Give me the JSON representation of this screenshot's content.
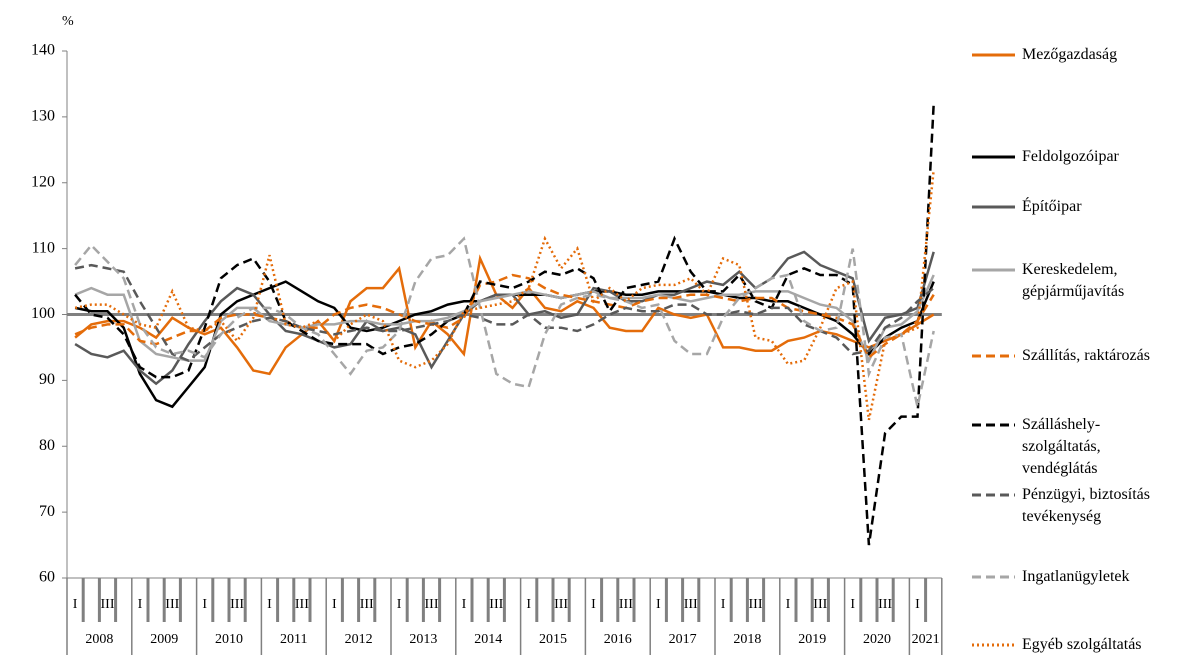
{
  "chart_data": {
    "type": "line",
    "y_unit": "%",
    "categories": [
      "I",
      null,
      "III",
      null,
      "I",
      null,
      "III",
      null,
      "I",
      null,
      "III",
      null,
      "I",
      null,
      "III",
      null,
      "I",
      null,
      "III",
      null,
      "I",
      null,
      "III",
      null,
      "I",
      null,
      "III",
      null,
      "I",
      null,
      "III",
      null,
      "I",
      null,
      "III",
      null,
      "I",
      null,
      "III",
      null,
      "I",
      null,
      "III",
      null,
      "I",
      null,
      "III",
      null,
      "I",
      null,
      "III",
      null,
      "I",
      null
    ],
    "years": [
      "2008",
      "2009",
      "2010",
      "2011",
      "2012",
      "2013",
      "2014",
      "2015",
      "2016",
      "2017",
      "2018",
      "2019",
      "2020",
      "2021"
    ],
    "ylim": [
      60,
      140
    ],
    "yticks": [
      60,
      70,
      80,
      90,
      100,
      110,
      120,
      130,
      140
    ],
    "reference_line": 100,
    "series": [
      {
        "name": "Mezőgazdaság",
        "color": "#e46c0a",
        "dash": "solid",
        "values": [
          96.5,
          98.5,
          99,
          99,
          98,
          96.5,
          99.5,
          98,
          97,
          98,
          95,
          91.5,
          91,
          95,
          97,
          99,
          96,
          102,
          104,
          104,
          107,
          95,
          99,
          97,
          94,
          108.5,
          103,
          101,
          104,
          101,
          100.5,
          102,
          101,
          98,
          97.5,
          97.5,
          101,
          100,
          99.5,
          100,
          95,
          95,
          94.5,
          94.5,
          96,
          96.5,
          97.5,
          97,
          96,
          95,
          96,
          97,
          98.5,
          100
        ]
      },
      {
        "name": "Feldolgozóipar",
        "color": "#000000",
        "dash": "solid",
        "values": [
          101,
          100.5,
          100.5,
          98,
          91,
          87,
          86,
          89,
          92,
          100,
          102,
          103,
          104,
          105,
          103.5,
          102,
          101,
          98,
          97.5,
          98,
          99,
          100,
          100.5,
          101.5,
          102,
          102,
          103,
          103,
          103,
          103,
          102.5,
          103,
          103.5,
          103.5,
          103,
          103,
          103.5,
          103.5,
          103.5,
          103.5,
          103,
          102.5,
          102.5,
          102,
          102,
          101,
          100,
          99,
          97,
          94,
          96.5,
          98,
          99,
          105
        ]
      },
      {
        "name": "Építőipar",
        "color": "#595959",
        "dash": "solid",
        "values": [
          95.5,
          94,
          93.5,
          94.5,
          91.5,
          89.5,
          91.5,
          95.5,
          99,
          102,
          104,
          103,
          100,
          97.5,
          97,
          96,
          95,
          95.5,
          99,
          97.5,
          98,
          97,
          92,
          96,
          100,
          102,
          103,
          103,
          100,
          100.5,
          99.5,
          100,
          104,
          103.5,
          102,
          102,
          103,
          103,
          104,
          105,
          104.5,
          106.5,
          104,
          105.5,
          108.5,
          109.5,
          107.5,
          106.5,
          105.5,
          96,
          99.5,
          100,
          101,
          109.5
        ]
      },
      {
        "name": "Kereskedelem, gépjárműjavítás",
        "color": "#a6a6a6",
        "dash": "solid",
        "values": [
          103,
          104,
          103,
          103,
          96,
          94,
          93.5,
          93,
          93,
          99,
          101,
          101,
          99,
          98.5,
          98,
          98.5,
          98.5,
          99,
          99,
          98.5,
          98.5,
          99,
          99,
          99.5,
          100.5,
          102,
          102.5,
          103,
          103.5,
          103,
          102.5,
          103,
          103.5,
          102.5,
          102.5,
          102.5,
          103,
          102.5,
          102,
          102.5,
          103,
          103,
          103.5,
          103.5,
          103.5,
          102.5,
          101.5,
          101,
          99,
          93,
          98,
          98.5,
          100.5,
          106
        ]
      },
      {
        "name": "Szállítás, raktározás",
        "color": "#e46c0a",
        "dash": "dashed",
        "values": [
          97,
          98,
          98.5,
          98.5,
          96,
          95.5,
          96.5,
          97.5,
          97.5,
          99.5,
          100,
          100,
          99.5,
          99,
          98,
          98,
          100,
          101,
          101.5,
          101,
          100,
          99,
          98.5,
          98,
          99.5,
          104.5,
          105,
          106,
          105.5,
          104,
          103,
          102.5,
          102,
          101.5,
          101,
          102,
          102.5,
          102.5,
          103,
          103,
          102.5,
          102,
          102.5,
          102.5,
          101,
          100.5,
          100,
          99.5,
          98.5,
          93.5,
          95.5,
          97,
          99,
          103
        ]
      },
      {
        "name": "Szálláshely-szolgáltatás, vendéglátás",
        "color": "#000000",
        "dash": "dashed",
        "values": [
          103,
          100,
          99.5,
          97,
          92,
          90.5,
          90.5,
          91.5,
          98,
          105.5,
          107.5,
          108.5,
          105,
          99,
          97.5,
          96,
          95.5,
          95.5,
          95.5,
          94,
          95,
          95.5,
          97,
          99,
          100,
          105,
          104.5,
          104,
          105,
          106.5,
          106,
          107,
          105.5,
          100.5,
          104,
          104.5,
          105,
          111.5,
          106.5,
          103.5,
          103.5,
          106,
          102,
          101,
          106,
          107,
          106,
          106,
          104.5,
          65,
          82,
          84.5,
          84.5,
          132
        ]
      },
      {
        "name": "Pénzügyi, biztosítás tevékenység",
        "color": "#595959",
        "dash": "dashed",
        "values": [
          107,
          107.5,
          107,
          106.5,
          102,
          98,
          94,
          93,
          95,
          97,
          98,
          99,
          99.5,
          99,
          98,
          97.5,
          97,
          97.5,
          98,
          97.5,
          97.5,
          98,
          98.5,
          99,
          100,
          99.5,
          98.5,
          98.5,
          100,
          98,
          98,
          97.5,
          98.5,
          100,
          101,
          100.5,
          100.5,
          101.5,
          101.5,
          100,
          100,
          100.5,
          100,
          101,
          101,
          98.5,
          97.5,
          96.5,
          94,
          94.5,
          98,
          99.5,
          102,
          104
        ]
      },
      {
        "name": "Ingatlanügyletek",
        "color": "#a6a6a6",
        "dash": "dashed",
        "values": [
          107.5,
          110.5,
          108,
          105.5,
          98.5,
          95,
          94,
          94.5,
          93.5,
          97,
          99.5,
          101,
          101,
          100,
          98,
          97,
          94,
          91,
          94.5,
          95,
          97.5,
          105,
          108.5,
          109,
          111.5,
          101,
          91,
          89.5,
          89,
          97,
          101.5,
          102.5,
          103,
          102.5,
          102,
          101,
          101.5,
          96,
          94,
          94,
          99.5,
          102.5,
          104,
          105.5,
          106,
          99,
          97.5,
          98,
          110,
          91,
          96.5,
          97,
          86,
          97.5
        ]
      },
      {
        "name": "Egyéb szolgáltatás",
        "color": "#e46c0a",
        "dash": "dotted",
        "values": [
          101,
          101.5,
          101.5,
          100,
          98.5,
          98,
          103.5,
          98,
          97.5,
          99,
          96,
          99.5,
          109,
          98.5,
          98,
          99,
          96,
          98.5,
          100,
          99,
          93,
          92,
          93,
          95.5,
          100.5,
          101,
          101.5,
          102,
          104,
          111.5,
          107,
          110,
          102,
          104,
          102,
          104,
          104.5,
          104.5,
          105.5,
          103,
          108.5,
          107.5,
          96.5,
          96,
          92.5,
          93,
          98,
          104,
          105,
          84,
          96,
          97,
          98,
          122
        ]
      }
    ]
  }
}
